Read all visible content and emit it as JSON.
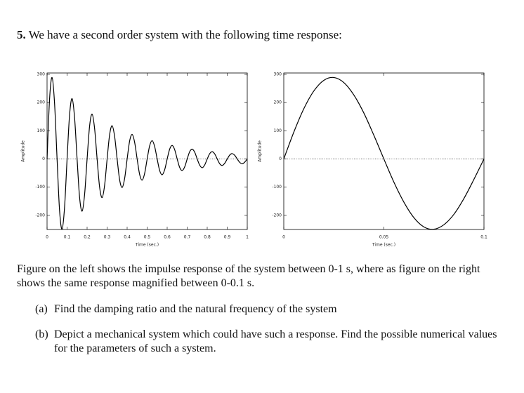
{
  "problem": {
    "number": "5.",
    "statement": "We have a second order system with the following time response:"
  },
  "chart_data": [
    {
      "type": "line",
      "xlabel": "Time (sec.)",
      "ylabel": "Amplitude",
      "color": "#000000",
      "x": [
        0,
        0.0125,
        0.025,
        0.0375,
        0.05,
        0.0625,
        0.075,
        0.0875,
        0.1,
        0.1125,
        0.125,
        0.1375,
        0.15,
        0.1625,
        0.175,
        0.1875,
        0.2,
        0.2125,
        0.225,
        0.2375,
        0.25,
        0.2625,
        0.275,
        0.2875,
        0.3,
        0.3125,
        0.325,
        0.3375,
        0.35,
        0.3625,
        0.375,
        0.3875,
        0.4,
        0.4125,
        0.425,
        0.4375,
        0.45,
        0.4625,
        0.475,
        0.4875,
        0.5,
        0.5125,
        0.525,
        0.5375,
        0.55,
        0.5625,
        0.575,
        0.5875,
        0.6,
        0.6125,
        0.625,
        0.6375,
        0.65,
        0.6625,
        0.675,
        0.6875,
        0.7,
        0.7125,
        0.725,
        0.7375,
        0.75,
        0.7625,
        0.775,
        0.7875,
        0.8,
        0.8125,
        0.825,
        0.8375,
        0.85,
        0.8625,
        0.875,
        0.8875,
        0.9,
        0.9125,
        0.925,
        0.9375,
        0.95,
        0.9625,
        0.975,
        0.9875,
        1
      ],
      "values": [
        0,
        212,
        289,
        197,
        0,
        -183,
        -249,
        -170,
        0,
        157,
        214,
        146,
        0,
        -136,
        -185,
        -126,
        0,
        117,
        159,
        108,
        0,
        -100,
        -137,
        -93,
        0,
        86,
        118,
        80,
        0,
        -74,
        -101,
        -69,
        0,
        64,
        87,
        59,
        0,
        -55,
        -75,
        -51,
        0,
        47,
        65,
        44,
        0,
        -41,
        -56,
        -38,
        0,
        35,
        48,
        33,
        0,
        -30,
        -41,
        -28,
        0,
        26,
        35,
        24,
        0,
        -22,
        -31,
        -21,
        0,
        19,
        26,
        18,
        0,
        -17,
        -23,
        -15,
        0,
        14,
        19,
        13,
        0,
        -12,
        -17,
        -11,
        0
      ],
      "xlim": [
        0,
        1
      ],
      "ylim": [
        -250,
        305
      ],
      "xticks": [
        0,
        0.1,
        0.2,
        0.3,
        0.4,
        0.5,
        0.6,
        0.7,
        0.8,
        0.9,
        1
      ],
      "yticks": [
        -200,
        -100,
        0,
        100,
        200,
        300
      ]
    },
    {
      "type": "line",
      "xlabel": "Time (sec.)",
      "ylabel": "Amplitude",
      "color": "#000000",
      "x": [
        0,
        0.005,
        0.01,
        0.015,
        0.02,
        0.025,
        0.03,
        0.035,
        0.04,
        0.045,
        0.05,
        0.055,
        0.06,
        0.065,
        0.07,
        0.075,
        0.08,
        0.085,
        0.09,
        0.095,
        0.1
      ],
      "values": [
        0,
        95,
        178,
        241,
        279,
        289,
        271,
        227,
        163,
        84,
        0,
        -82,
        -153,
        -208,
        -241,
        -249,
        -233,
        -196,
        -140,
        -72,
        0
      ],
      "xlim": [
        0,
        0.1
      ],
      "ylim": [
        -250,
        305
      ],
      "xticks": [
        0,
        0.05,
        0.1
      ],
      "yticks": [
        -200,
        -100,
        0,
        100,
        200,
        300
      ]
    }
  ],
  "caption": "Figure on the left shows the impulse response of the system between 0-1 s, where as figure on the right shows the same response magnified between 0-0.1 s.",
  "questions": [
    {
      "label": "(a)",
      "text": "Find the damping ratio and the natural frequency of the system"
    },
    {
      "label": "(b)",
      "text": "Depict a mechanical system which could have such a response. Find the possible numerical values for the parameters of such a system."
    }
  ]
}
